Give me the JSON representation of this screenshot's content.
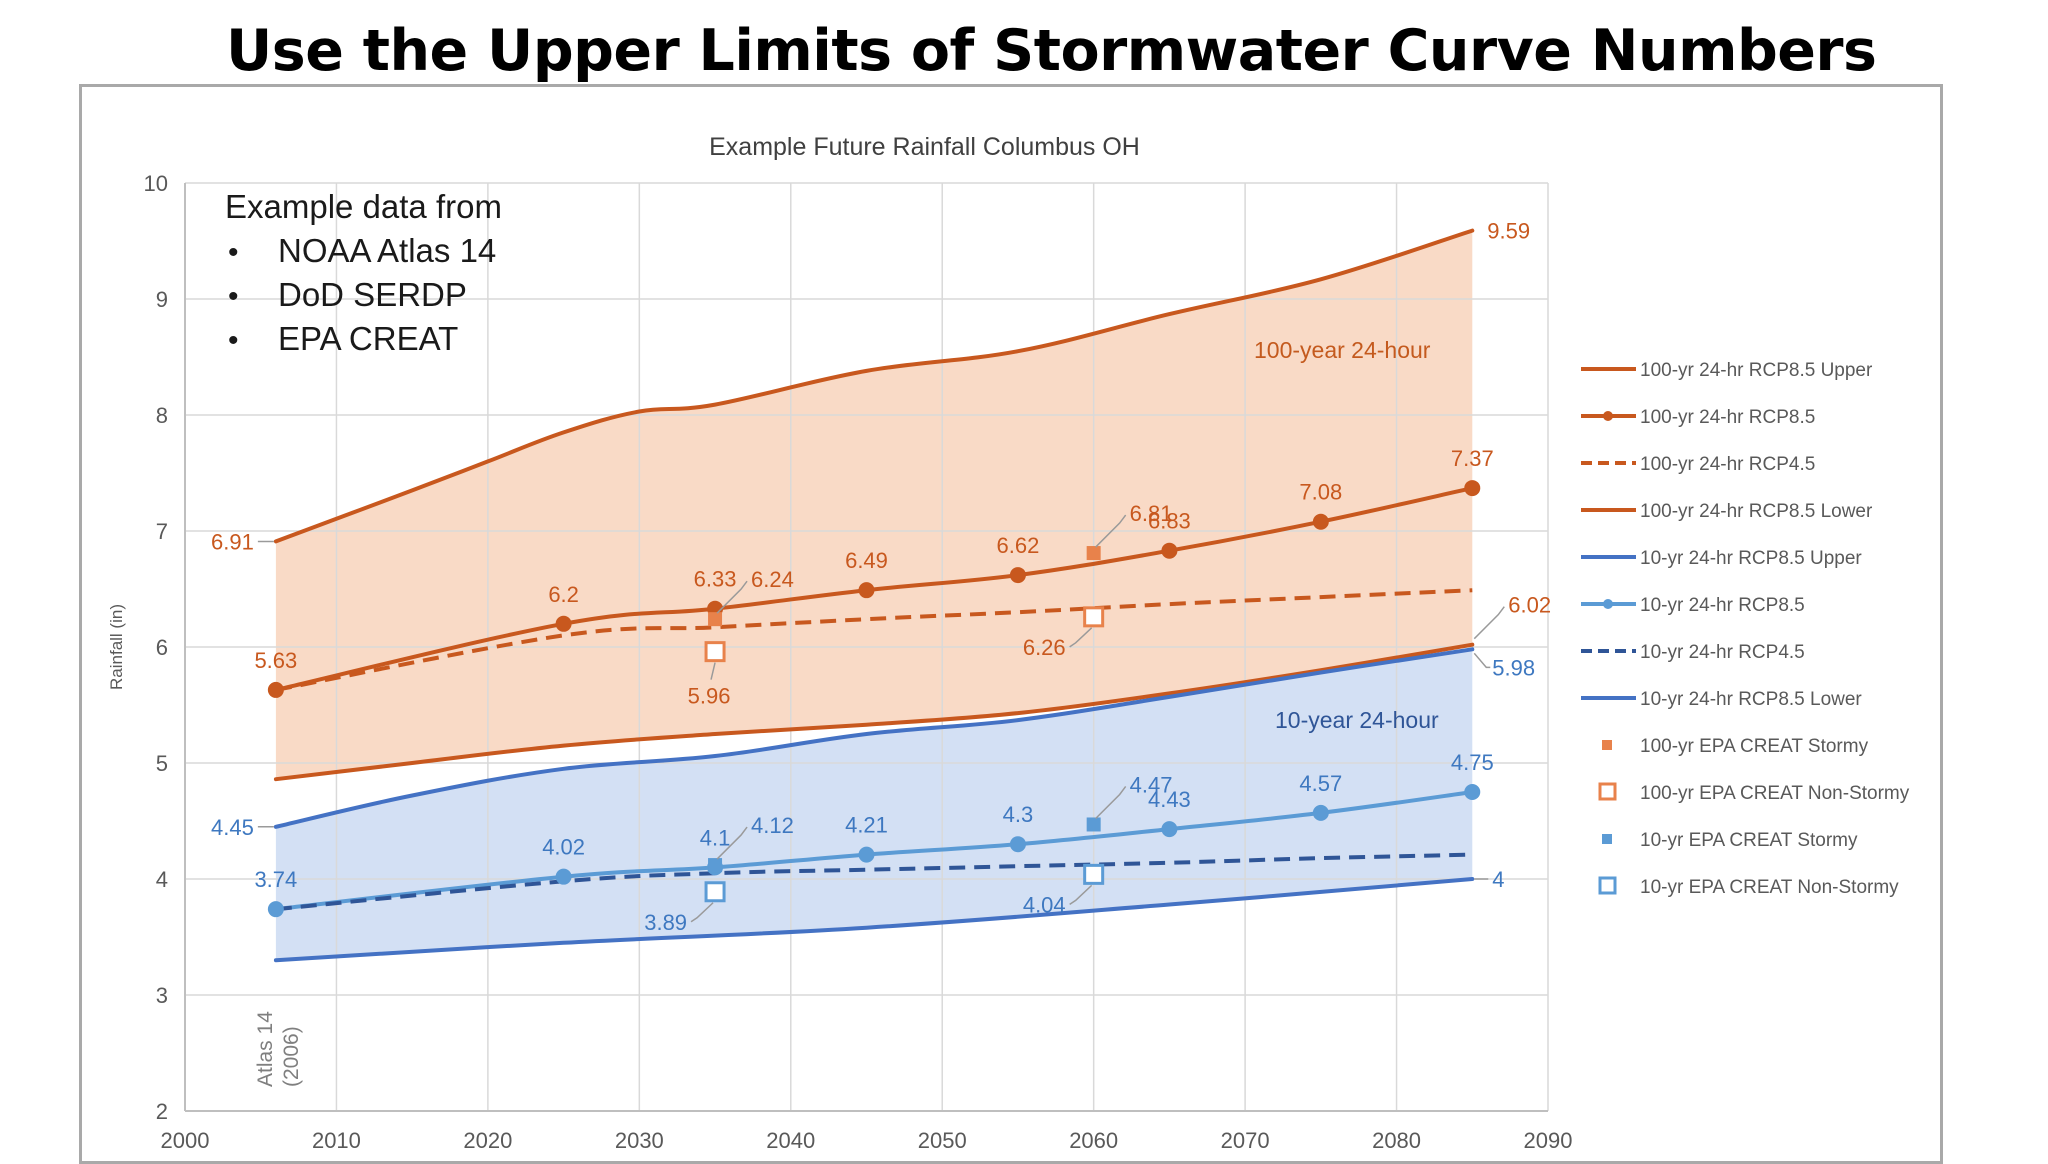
{
  "slide": {
    "title": "Use the Upper Limits of Stormwater Curve Numbers"
  },
  "chart_data": {
    "type": "line",
    "title": "Example Future Rainfall Columbus OH",
    "xlabel": "",
    "ylabel": "Rainfall (in)",
    "xlim": [
      2000,
      2090
    ],
    "ylim": [
      2,
      10
    ],
    "x_ticks": [
      2000,
      2010,
      2020,
      2030,
      2040,
      2050,
      2060,
      2070,
      2080,
      2090
    ],
    "y_ticks": [
      2,
      3,
      4,
      5,
      6,
      7,
      8,
      9,
      10
    ],
    "grid": true,
    "colors": {
      "orange": "#c8581e",
      "orange_fill": "#f9dac6",
      "blue": "#3e78c0",
      "blue_light": "#5b9bd5",
      "blue_fill": "#d3e0f4",
      "grid": "#d9d9d9",
      "axis_text": "#595959"
    },
    "info_box": {
      "heading": "Example data from",
      "items": [
        "NOAA Atlas 14",
        "DoD SERDP",
        "EPA CREAT"
      ]
    },
    "region_labels": {
      "upper": "100-year 24-hour",
      "lower": "10-year 24-hour"
    },
    "atlas_note": {
      "line1": "Atlas 14",
      "line2": "(2006)"
    },
    "series": [
      {
        "name": "100-yr 24-hr RCP8.5 Upper",
        "style": "line",
        "color": "#c8581e",
        "x": [
          2006,
          2015,
          2020,
          2025,
          2030,
          2035,
          2045,
          2055,
          2065,
          2075,
          2085
        ],
        "y": [
          6.91,
          7.35,
          7.6,
          7.85,
          8.03,
          8.09,
          8.38,
          8.55,
          8.87,
          9.17,
          9.59
        ]
      },
      {
        "name": "100-yr 24-hr RCP8.5",
        "style": "line-marker",
        "color": "#c8581e",
        "x": [
          2006,
          2025,
          2035,
          2045,
          2055,
          2065,
          2075,
          2085
        ],
        "y": [
          5.63,
          6.2,
          6.33,
          6.49,
          6.62,
          6.83,
          7.08,
          7.37
        ]
      },
      {
        "name": "100-yr 24-hr RCP4.5",
        "style": "dashed",
        "color": "#c8581e",
        "x": [
          2006,
          2025,
          2035,
          2045,
          2055,
          2065,
          2075,
          2085
        ],
        "y": [
          5.63,
          6.1,
          6.17,
          6.24,
          6.3,
          6.37,
          6.43,
          6.49
        ]
      },
      {
        "name": "100-yr 24-hr RCP8.5 Lower",
        "style": "line",
        "color": "#c8581e",
        "x": [
          2006,
          2015,
          2025,
          2035,
          2045,
          2055,
          2065,
          2075,
          2085
        ],
        "y": [
          4.86,
          5.0,
          5.15,
          5.25,
          5.33,
          5.43,
          5.6,
          5.8,
          6.02
        ]
      },
      {
        "name": "10-yr 24-hr RCP8.5 Upper",
        "style": "line",
        "color": "#4472c4",
        "x": [
          2006,
          2015,
          2025,
          2035,
          2045,
          2055,
          2065,
          2075,
          2085
        ],
        "y": [
          4.45,
          4.72,
          4.95,
          5.06,
          5.25,
          5.37,
          5.57,
          5.78,
          5.98
        ]
      },
      {
        "name": "10-yr 24-hr RCP8.5",
        "style": "line-marker",
        "color": "#5b9bd5",
        "x": [
          2006,
          2025,
          2035,
          2045,
          2055,
          2065,
          2075,
          2085
        ],
        "y": [
          3.74,
          4.02,
          4.1,
          4.21,
          4.3,
          4.43,
          4.57,
          4.75
        ]
      },
      {
        "name": "10-yr 24-hr RCP4.5",
        "style": "dashed",
        "color": "#2f5597",
        "x": [
          2006,
          2025,
          2035,
          2045,
          2055,
          2065,
          2075,
          2085
        ],
        "y": [
          3.74,
          3.98,
          4.05,
          4.08,
          4.11,
          4.14,
          4.18,
          4.21
        ]
      },
      {
        "name": "10-yr 24-hr RCP8.5 Lower",
        "style": "line",
        "color": "#4472c4",
        "x": [
          2006,
          2025,
          2045,
          2065,
          2085
        ],
        "y": [
          3.3,
          3.45,
          3.58,
          3.78,
          4.0
        ]
      },
      {
        "name": "100-yr EPA CREAT Stormy",
        "style": "square-filled",
        "color": "#e8824b",
        "x": [
          2035,
          2060
        ],
        "y": [
          6.24,
          6.81
        ]
      },
      {
        "name": "100-yr EPA CREAT Non-Stormy",
        "style": "square-open",
        "color": "#e8824b",
        "x": [
          2035,
          2060
        ],
        "y": [
          5.96,
          6.26
        ]
      },
      {
        "name": "10-yr EPA CREAT Stormy",
        "style": "square-filled",
        "color": "#5b9bd5",
        "x": [
          2035,
          2060
        ],
        "y": [
          4.12,
          4.47
        ]
      },
      {
        "name": "10-yr EPA CREAT Non-Stormy",
        "style": "square-open",
        "color": "#5b9bd5",
        "x": [
          2035,
          2060
        ],
        "y": [
          3.89,
          4.04
        ]
      }
    ],
    "data_labels": [
      {
        "text": "9.59",
        "x": 2085,
        "y": 9.59,
        "color": "orange",
        "pos": "right"
      },
      {
        "text": "6.91",
        "x": 2006,
        "y": 6.91,
        "color": "orange",
        "pos": "left"
      },
      {
        "text": "7.37",
        "x": 2085,
        "y": 7.37,
        "color": "orange",
        "pos": "above"
      },
      {
        "text": "7.08",
        "x": 2075,
        "y": 7.08,
        "color": "orange",
        "pos": "above"
      },
      {
        "text": "6.83",
        "x": 2065,
        "y": 6.83,
        "color": "orange",
        "pos": "above"
      },
      {
        "text": "6.62",
        "x": 2055,
        "y": 6.62,
        "color": "orange",
        "pos": "above"
      },
      {
        "text": "6.49",
        "x": 2045,
        "y": 6.49,
        "color": "orange",
        "pos": "above"
      },
      {
        "text": "6.33",
        "x": 2035,
        "y": 6.33,
        "color": "orange",
        "pos": "above"
      },
      {
        "text": "6.2",
        "x": 2025,
        "y": 6.2,
        "color": "orange",
        "pos": "above"
      },
      {
        "text": "5.63",
        "x": 2006,
        "y": 5.63,
        "color": "orange",
        "pos": "above"
      },
      {
        "text": "6.24",
        "x": 2035,
        "y": 6.24,
        "color": "orange",
        "pos": "leader-upright"
      },
      {
        "text": "6.81",
        "x": 2060,
        "y": 6.81,
        "color": "orange",
        "pos": "leader-upright"
      },
      {
        "text": "5.96",
        "x": 2035,
        "y": 5.96,
        "color": "orange",
        "pos": "leader-below"
      },
      {
        "text": "6.26",
        "x": 2060,
        "y": 6.26,
        "color": "orange",
        "pos": "leader-downleft"
      },
      {
        "text": "6.02",
        "x": 2085,
        "y": 6.02,
        "color": "orange",
        "pos": "leader-upright"
      },
      {
        "text": "5.98",
        "x": 2085,
        "y": 5.98,
        "color": "blue",
        "pos": "leader-downright"
      },
      {
        "text": "4.45",
        "x": 2006,
        "y": 4.45,
        "color": "blue",
        "pos": "left"
      },
      {
        "text": "4.75",
        "x": 2085,
        "y": 4.75,
        "color": "blue",
        "pos": "above"
      },
      {
        "text": "4.57",
        "x": 2075,
        "y": 4.57,
        "color": "blue",
        "pos": "above"
      },
      {
        "text": "4.43",
        "x": 2065,
        "y": 4.43,
        "color": "blue",
        "pos": "above"
      },
      {
        "text": "4.3",
        "x": 2055,
        "y": 4.3,
        "color": "blue",
        "pos": "above"
      },
      {
        "text": "4.21",
        "x": 2045,
        "y": 4.21,
        "color": "blue",
        "pos": "above"
      },
      {
        "text": "4.1",
        "x": 2035,
        "y": 4.1,
        "color": "blue",
        "pos": "above"
      },
      {
        "text": "4.02",
        "x": 2025,
        "y": 4.02,
        "color": "blue",
        "pos": "above"
      },
      {
        "text": "3.74",
        "x": 2006,
        "y": 3.74,
        "color": "blue",
        "pos": "above"
      },
      {
        "text": "4.12",
        "x": 2035,
        "y": 4.12,
        "color": "blue",
        "pos": "leader-upright"
      },
      {
        "text": "4.47",
        "x": 2060,
        "y": 4.47,
        "color": "blue",
        "pos": "leader-upright"
      },
      {
        "text": "3.89",
        "x": 2035,
        "y": 3.89,
        "color": "blue",
        "pos": "leader-downleft"
      },
      {
        "text": "4.04",
        "x": 2060,
        "y": 4.04,
        "color": "blue",
        "pos": "leader-downleft"
      },
      {
        "text": "4",
        "x": 2085,
        "y": 4.0,
        "color": "blue",
        "pos": "leader-right"
      }
    ],
    "legend": {
      "position": "right",
      "entries": [
        {
          "label": "100-yr 24-hr RCP8.5 Upper",
          "style": "line",
          "color": "#c8581e"
        },
        {
          "label": "100-yr 24-hr RCP8.5",
          "style": "line-marker",
          "color": "#c8581e"
        },
        {
          "label": "100-yr 24-hr RCP4.5",
          "style": "dashed",
          "color": "#c8581e"
        },
        {
          "label": "100-yr 24-hr RCP8.5 Lower",
          "style": "line",
          "color": "#c8581e"
        },
        {
          "label": "10-yr 24-hr RCP8.5 Upper",
          "style": "line",
          "color": "#4472c4"
        },
        {
          "label": "10-yr 24-hr RCP8.5",
          "style": "line-marker",
          "color": "#5b9bd5"
        },
        {
          "label": "10-yr 24-hr RCP4.5",
          "style": "dashed",
          "color": "#2f5597"
        },
        {
          "label": "10-yr 24-hr RCP8.5 Lower",
          "style": "line",
          "color": "#4472c4"
        },
        {
          "label": "100-yr EPA CREAT Stormy",
          "style": "square-filled",
          "color": "#e8824b"
        },
        {
          "label": "100-yr EPA CREAT Non-Stormy",
          "style": "square-open",
          "color": "#e8824b"
        },
        {
          "label": "10-yr EPA CREAT Stormy",
          "style": "square-filled",
          "color": "#5b9bd5"
        },
        {
          "label": "10-yr EPA CREAT Non-Stormy",
          "style": "square-open",
          "color": "#5b9bd5"
        }
      ]
    }
  }
}
